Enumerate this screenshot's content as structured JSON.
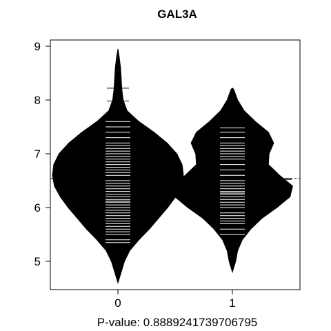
{
  "chart_data": {
    "type": "beanplot",
    "title": "GAL3A",
    "xlabel": "P-value: 0.8889241739706795",
    "ylabel": "",
    "categories": [
      "0",
      "1"
    ],
    "ylim": [
      4.5,
      9.1
    ],
    "yticks": [
      5,
      6,
      7,
      8,
      9
    ],
    "overall_mean": 6.54,
    "grid": false,
    "beans": [
      {
        "category": "0",
        "mean": 6.55,
        "range": [
          4.6,
          8.95
        ],
        "density": [
          [
            4.6,
            0.0
          ],
          [
            4.8,
            0.05
          ],
          [
            5.0,
            0.1
          ],
          [
            5.2,
            0.18
          ],
          [
            5.4,
            0.32
          ],
          [
            5.6,
            0.48
          ],
          [
            5.8,
            0.62
          ],
          [
            6.0,
            0.76
          ],
          [
            6.2,
            0.88
          ],
          [
            6.4,
            0.97
          ],
          [
            6.6,
            1.0
          ],
          [
            6.8,
            0.98
          ],
          [
            7.0,
            0.9
          ],
          [
            7.2,
            0.75
          ],
          [
            7.4,
            0.55
          ],
          [
            7.6,
            0.32
          ],
          [
            7.8,
            0.14
          ],
          [
            8.0,
            0.08
          ],
          [
            8.2,
            0.06
          ],
          [
            8.4,
            0.05
          ],
          [
            8.6,
            0.04
          ],
          [
            8.8,
            0.02
          ],
          [
            8.95,
            0.0
          ]
        ],
        "observations": [
          5.35,
          5.4,
          5.5,
          5.55,
          5.6,
          5.65,
          5.7,
          5.75,
          5.8,
          5.85,
          5.9,
          5.95,
          6.0,
          6.05,
          6.1,
          6.12,
          6.15,
          6.2,
          6.25,
          6.3,
          6.35,
          6.4,
          6.45,
          6.5,
          6.55,
          6.6,
          6.65,
          6.7,
          6.75,
          6.8,
          6.85,
          6.9,
          6.95,
          7.0,
          7.05,
          7.1,
          7.15,
          7.2,
          7.3,
          7.4,
          7.5,
          7.6,
          7.98,
          8.22
        ]
      },
      {
        "category": "1",
        "mean": 6.53,
        "range": [
          4.8,
          8.22
        ],
        "density": [
          [
            4.8,
            0.0
          ],
          [
            5.0,
            0.05
          ],
          [
            5.2,
            0.08
          ],
          [
            5.4,
            0.15
          ],
          [
            5.6,
            0.28
          ],
          [
            5.8,
            0.45
          ],
          [
            6.0,
            0.68
          ],
          [
            6.2,
            0.88
          ],
          [
            6.4,
            0.92
          ],
          [
            6.6,
            0.72
          ],
          [
            6.8,
            0.55
          ],
          [
            7.0,
            0.56
          ],
          [
            7.2,
            0.63
          ],
          [
            7.4,
            0.55
          ],
          [
            7.6,
            0.35
          ],
          [
            7.8,
            0.18
          ],
          [
            8.0,
            0.08
          ],
          [
            8.2,
            0.02
          ],
          [
            8.22,
            0.0
          ]
        ],
        "observations": [
          5.5,
          5.6,
          5.7,
          5.75,
          5.8,
          5.85,
          5.9,
          6.0,
          6.05,
          6.1,
          6.15,
          6.2,
          6.25,
          6.27,
          6.3,
          6.35,
          6.4,
          6.45,
          6.5,
          6.6,
          6.7,
          6.8,
          6.9,
          6.95,
          7.0,
          7.05,
          7.1,
          7.15,
          7.2,
          7.3,
          7.4,
          7.48
        ]
      }
    ]
  }
}
